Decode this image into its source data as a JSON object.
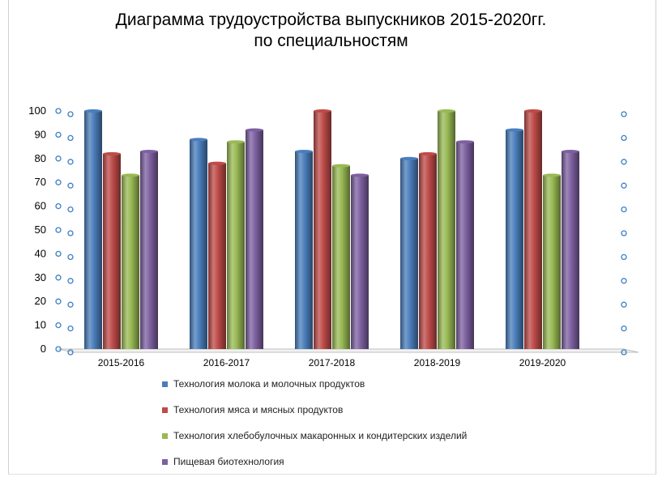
{
  "chart_data": {
    "type": "bar",
    "title": "Диаграмма трудоустройства выпускников 2015-2020гг.",
    "subtitle": "по специальностям",
    "categories": [
      "2015-2016",
      "2016-2017",
      "2017-2018",
      "2018-2019",
      "2019-2020"
    ],
    "series": [
      {
        "name": "Технология молока и молочных продуктов",
        "color": "#4a7ebb",
        "values": [
          100,
          88,
          83,
          80,
          92
        ]
      },
      {
        "name": "Технология мяса и мясных продуктов",
        "color": "#be4b48",
        "values": [
          82,
          78,
          100,
          82,
          100
        ]
      },
      {
        "name": "Технология хлебобулочных макаронных и кондитерских изделий",
        "color": "#98b954",
        "values": [
          73,
          87,
          77,
          100,
          73
        ]
      },
      {
        "name": "Пищевая биотехнология",
        "color": "#7d60a0",
        "values": [
          83,
          92,
          73,
          87,
          83
        ]
      }
    ],
    "ylim": [
      0,
      100
    ],
    "yticks": [
      0,
      10,
      20,
      30,
      40,
      50,
      60,
      70,
      80,
      90,
      100
    ],
    "xlabel": "",
    "ylabel": "",
    "legend_position": "bottom",
    "grid": false,
    "style": "3d-cylinder"
  }
}
